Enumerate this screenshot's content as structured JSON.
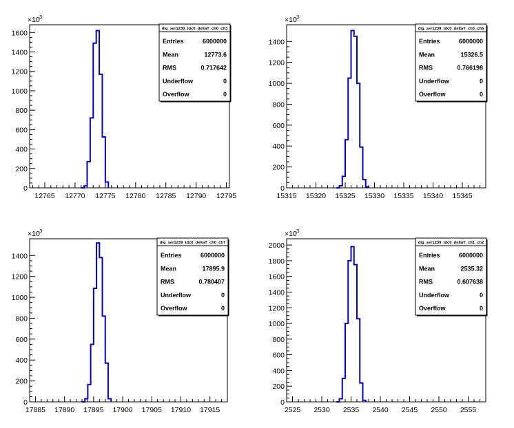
{
  "multiplier_label": "×10",
  "multiplier_exp": "3",
  "stats_labels": [
    "Entries",
    "Mean",
    "RMS",
    "Underflow",
    "Overflow"
  ],
  "chart_data": [
    {
      "type": "bar",
      "title": "dig_ser1239_tdc0_deltaT_ch0_ch3",
      "xlim": [
        12762.5,
        12795.5
      ],
      "ylim": [
        0,
        1680
      ],
      "xticks": [
        12765,
        12770,
        12775,
        12780,
        12785,
        12790,
        12795
      ],
      "yticks": [
        0,
        200,
        400,
        600,
        800,
        1000,
        1200,
        1400,
        1600
      ],
      "bin_width": 0.5,
      "x": [
        12771.0,
        12771.5,
        12772.0,
        12772.5,
        12773.0,
        12773.5,
        12774.0,
        12774.5,
        12775.0
      ],
      "values": [
        0,
        20,
        270,
        720,
        1490,
        1620,
        1170,
        525,
        60
      ],
      "stats": {
        "Entries": "6000000",
        "Mean": "12773.6",
        "RMS": "0.717642",
        "Underflow": "0",
        "Overflow": "0"
      }
    },
    {
      "type": "bar",
      "title": "dig_ser1239_tdc0_deltaT_ch0_ch6",
      "xlim": [
        15315,
        15349
      ],
      "ylim": [
        0,
        1560
      ],
      "xticks": [
        15315,
        15320,
        15325,
        15330,
        15335,
        15340,
        15345
      ],
      "yticks": [
        0,
        200,
        400,
        600,
        800,
        1000,
        1200,
        1400
      ],
      "bin_width": 0.5,
      "x": [
        15323.5,
        15324.0,
        15324.5,
        15325.0,
        15325.5,
        15326.0,
        15326.5,
        15327.0,
        15327.5,
        15328.0,
        15328.5
      ],
      "values": [
        0,
        20,
        110,
        460,
        1050,
        1505,
        1450,
        1000,
        390,
        80,
        10
      ],
      "stats": {
        "Entries": "6000000",
        "Mean": "15326.5",
        "RMS": "0.766198",
        "Underflow": "0",
        "Overflow": "0"
      }
    },
    {
      "type": "bar",
      "title": "dig_ser1239_tdc0_deltaT_ch0_ch7",
      "xlim": [
        17884,
        17918
      ],
      "ylim": [
        0,
        1560
      ],
      "xticks": [
        17885,
        17890,
        17895,
        17900,
        17905,
        17910,
        17915
      ],
      "yticks": [
        0,
        200,
        400,
        600,
        800,
        1000,
        1200,
        1400
      ],
      "bin_width": 0.5,
      "x": [
        17893.0,
        17893.5,
        17894.0,
        17894.5,
        17895.0,
        17895.5,
        17896.0,
        17896.5,
        17897.0,
        17897.5
      ],
      "values": [
        0,
        30,
        165,
        550,
        1085,
        1520,
        1380,
        820,
        370,
        30
      ],
      "stats": {
        "Entries": "6000000",
        "Mean": "17895.9",
        "RMS": "0.780407",
        "Underflow": "0",
        "Overflow": "0"
      }
    },
    {
      "type": "bar",
      "title": "dig_ser1239_tdc0_deltaT_ch1_ch2",
      "xlim": [
        2524,
        2558
      ],
      "ylim": [
        0,
        2080
      ],
      "xticks": [
        2525,
        2530,
        2535,
        2540,
        2545,
        2550,
        2555
      ],
      "yticks": [
        0,
        200,
        400,
        600,
        800,
        1000,
        1200,
        1400,
        1600,
        1800,
        2000
      ],
      "bin_width": 0.5,
      "x": [
        2532.5,
        2533.0,
        2533.5,
        2534.0,
        2534.5,
        2535.0,
        2535.5,
        2536.0,
        2536.5,
        2537.0
      ],
      "values": [
        0,
        40,
        300,
        1000,
        1800,
        1980,
        1750,
        1060,
        240,
        20
      ],
      "stats": {
        "Entries": "6000000",
        "Mean": "2535.32",
        "RMS": "0.607638",
        "Underflow": "0",
        "Overflow": "0"
      }
    }
  ]
}
